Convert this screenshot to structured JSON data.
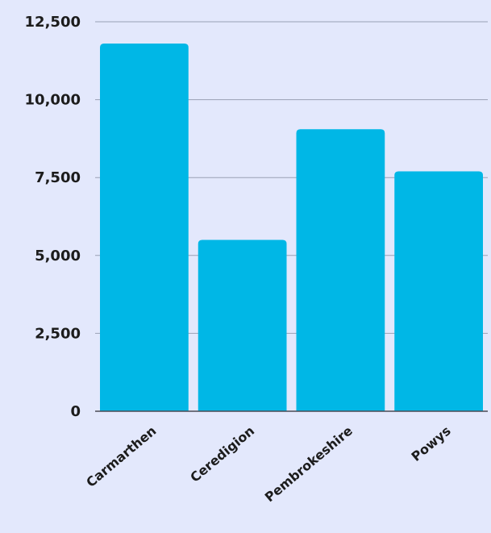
{
  "colors": {
    "background": "#e3e8fc",
    "bar": "#00b7e6",
    "gridline": "#9aa0b4",
    "axis_text": "#1c1c1c"
  },
  "chart_data": {
    "type": "bar",
    "title": "",
    "xlabel": "",
    "ylabel": "",
    "categories": [
      "Carmarthen",
      "Ceredigion",
      "Pembrokeshire",
      "Powys"
    ],
    "values": [
      11800,
      5500,
      9050,
      7700
    ],
    "ylim": [
      0,
      12500
    ],
    "yticks": [
      0,
      2500,
      5000,
      7500,
      10000,
      12500
    ],
    "ytick_labels": [
      "0",
      "2,500",
      "5,000",
      "7,500",
      "10,000",
      "12,500"
    ],
    "grid": true,
    "legend": "none"
  }
}
